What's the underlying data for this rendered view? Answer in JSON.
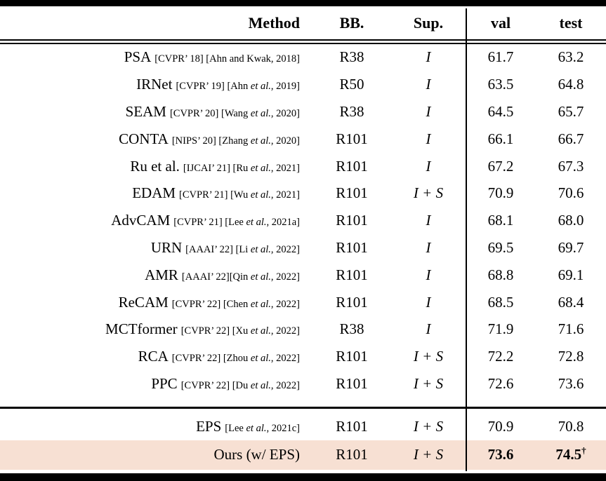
{
  "colors": {
    "highlight_row": "#f7e0d3",
    "rule": "#000000",
    "text": "#000000"
  },
  "table": {
    "header": {
      "method": "Method",
      "bb": "BB.",
      "sup": "Sup.",
      "val": "val",
      "test": "test"
    },
    "rows": [
      {
        "name": "PSA",
        "cite": [
          {
            "t": "[CVPR’ 18] [Ahn and Kwak, 2018]"
          }
        ],
        "bb": "R38",
        "sup": "I",
        "val": "61.7",
        "test": "63.2"
      },
      {
        "name": "IRNet",
        "cite": [
          {
            "t": "[CVPR’ 19] [Ahn "
          },
          {
            "t": "et al.",
            "i": true
          },
          {
            "t": ", 2019]"
          }
        ],
        "bb": "R50",
        "sup": "I",
        "val": "63.5",
        "test": "64.8"
      },
      {
        "name": "SEAM",
        "cite": [
          {
            "t": "[CVPR’ 20] [Wang "
          },
          {
            "t": "et al.",
            "i": true
          },
          {
            "t": ", 2020]"
          }
        ],
        "bb": "R38",
        "sup": "I",
        "val": "64.5",
        "test": "65.7"
      },
      {
        "name": "CONTA",
        "cite": [
          {
            "t": "[NIPS’ 20] [Zhang "
          },
          {
            "t": "et al.",
            "i": true
          },
          {
            "t": ", 2020]"
          }
        ],
        "bb": "R101",
        "sup": "I",
        "val": "66.1",
        "test": "66.7"
      },
      {
        "name": "Ru et al.",
        "cite": [
          {
            "t": "[IJCAI’ 21] [Ru "
          },
          {
            "t": "et al.",
            "i": true
          },
          {
            "t": ", 2021]"
          }
        ],
        "bb": "R101",
        "sup": "I",
        "val": "67.2",
        "test": "67.3"
      },
      {
        "name": "EDAM",
        "cite": [
          {
            "t": "[CVPR’ 21] [Wu "
          },
          {
            "t": "et al.",
            "i": true
          },
          {
            "t": ", 2021]"
          }
        ],
        "bb": "R101",
        "sup": "I + S",
        "val": "70.9",
        "test": "70.6"
      },
      {
        "name": "AdvCAM",
        "cite": [
          {
            "t": "[CVPR’ 21] [Lee "
          },
          {
            "t": "et al.",
            "i": true
          },
          {
            "t": ", 2021a]"
          }
        ],
        "bb": "R101",
        "sup": "I",
        "val": "68.1",
        "test": "68.0"
      },
      {
        "name": "URN",
        "cite": [
          {
            "t": "[AAAI’ 22] [Li "
          },
          {
            "t": "et al.",
            "i": true
          },
          {
            "t": ", 2022]"
          }
        ],
        "bb": "R101",
        "sup": "I",
        "val": "69.5",
        "test": "69.7"
      },
      {
        "name": "AMR",
        "cite": [
          {
            "t": "[AAAI’ 22][Qin "
          },
          {
            "t": "et al.",
            "i": true
          },
          {
            "t": ", 2022]"
          }
        ],
        "bb": "R101",
        "sup": "I",
        "val": "68.8",
        "test": "69.1"
      },
      {
        "name": "ReCAM",
        "cite": [
          {
            "t": "[CVPR’ 22] [Chen "
          },
          {
            "t": "et al.",
            "i": true
          },
          {
            "t": ", 2022]"
          }
        ],
        "bb": "R101",
        "sup": "I",
        "val": "68.5",
        "test": "68.4"
      },
      {
        "name": "MCTformer",
        "cite": [
          {
            "t": "[CVPR’ 22] [Xu "
          },
          {
            "t": "et al.",
            "i": true
          },
          {
            "t": ", 2022]"
          }
        ],
        "bb": "R38",
        "sup": "I",
        "val": "71.9",
        "test": "71.6"
      },
      {
        "name": "RCA",
        "cite": [
          {
            "t": "[CVPR’ 22] [Zhou "
          },
          {
            "t": "et al.",
            "i": true
          },
          {
            "t": ", 2022]"
          }
        ],
        "bb": "R101",
        "sup": "I + S",
        "val": "72.2",
        "test": "72.8"
      },
      {
        "name": "PPC",
        "cite": [
          {
            "t": "[CVPR’ 22] [Du "
          },
          {
            "t": "et al.",
            "i": true
          },
          {
            "t": ", 2022]"
          }
        ],
        "bb": "R101",
        "sup": "I + S",
        "val": "72.6",
        "test": "73.6"
      }
    ],
    "bottom_rows": [
      {
        "name": "EPS",
        "cite": [
          {
            "t": "[Lee "
          },
          {
            "t": "et al.",
            "i": true
          },
          {
            "t": ", 2021c]"
          }
        ],
        "bb": "R101",
        "sup": "I + S",
        "val": "70.9",
        "test": "70.8"
      },
      {
        "name": "Ours (w/ EPS)",
        "cite": [],
        "bb": "R101",
        "sup": "I + S",
        "val": "73.6",
        "test": "74.5",
        "test_sup": "†",
        "bold_scores": true,
        "highlight": true
      }
    ]
  }
}
